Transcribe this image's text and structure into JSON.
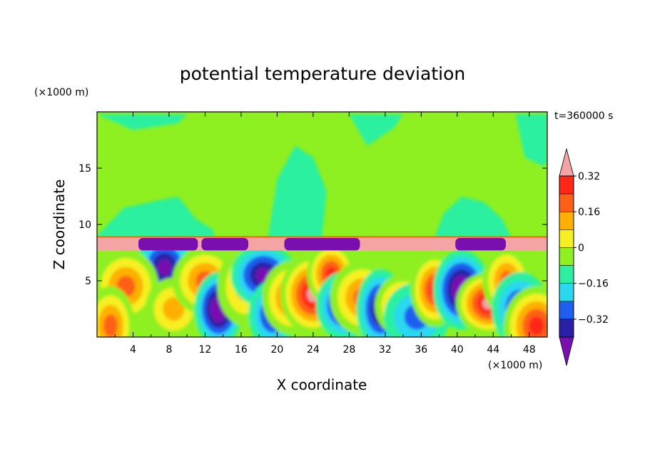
{
  "chart_data": {
    "type": "heatmap",
    "title": "potential temperature deviation",
    "xlabel": "X coordinate",
    "ylabel": "Z coordinate",
    "x_unit": "(×1000 m)",
    "y_unit": "(×1000 m)",
    "time_label": "t=360000 s",
    "xlim": [
      0,
      50
    ],
    "ylim": [
      0,
      20
    ],
    "x_ticks": [
      4,
      8,
      12,
      16,
      20,
      24,
      28,
      32,
      36,
      40,
      44,
      48
    ],
    "y_ticks": [
      5,
      10,
      15
    ],
    "colorbar": {
      "levels": [
        -0.4,
        -0.32,
        -0.24,
        -0.16,
        -0.08,
        0,
        0.08,
        0.16,
        0.24,
        0.32,
        0.4
      ],
      "labels": [
        "0.32",
        "0.16",
        "0",
        "−0.16",
        "−0.32"
      ],
      "label_values": [
        0.32,
        0.16,
        0,
        -0.16,
        -0.32
      ],
      "colors": [
        "#7a0fb0",
        "#2a20a8",
        "#1e5ff0",
        "#2ad8f0",
        "#2cf0a0",
        "#8ef020",
        "#f6f020",
        "#ffb000",
        "#ff6018",
        "#ff2818",
        "#f4a4a4"
      ]
    },
    "layers": {
      "upper_background_value": 0.04,
      "upper_patch_value": -0.04,
      "inversion_band": {
        "z": [
          7.7,
          8.9
        ],
        "value": 0.45
      },
      "inversion_cold_patches": [
        {
          "x": [
            4.6,
            11.2
          ],
          "value": -0.45
        },
        {
          "x": [
            11.6,
            16.8
          ],
          "value": -0.45
        },
        {
          "x": [
            20.8,
            29.2
          ],
          "value": -0.45
        },
        {
          "x": [
            39.8,
            45.4
          ],
          "value": -0.45
        }
      ],
      "boundary_layer_top": 7.7
    },
    "anomalies": [
      {
        "x": 6.0,
        "z": 5.0,
        "value": -0.36
      },
      {
        "x": 7.5,
        "z": 6.2,
        "value": -0.3
      },
      {
        "x": 3.2,
        "z": 4.5,
        "value": 0.2
      },
      {
        "x": 1.5,
        "z": 1.0,
        "value": 0.22
      },
      {
        "x": 8.5,
        "z": 2.5,
        "value": 0.18
      },
      {
        "x": 12.0,
        "z": 5.0,
        "value": 0.2
      },
      {
        "x": 13.5,
        "z": 2.5,
        "value": -0.36
      },
      {
        "x": 16.5,
        "z": 4.5,
        "value": 0.16
      },
      {
        "x": 18.5,
        "z": 5.5,
        "value": -0.32
      },
      {
        "x": 19.5,
        "z": 2.0,
        "value": -0.2
      },
      {
        "x": 21.5,
        "z": 3.5,
        "value": 0.24
      },
      {
        "x": 24.0,
        "z": 3.8,
        "value": 0.4
      },
      {
        "x": 26.0,
        "z": 5.6,
        "value": 0.3
      },
      {
        "x": 27.5,
        "z": 2.8,
        "value": -0.34
      },
      {
        "x": 29.5,
        "z": 3.5,
        "value": 0.2
      },
      {
        "x": 31.5,
        "z": 2.5,
        "value": -0.3
      },
      {
        "x": 34.0,
        "z": 2.8,
        "value": 0.26
      },
      {
        "x": 35.5,
        "z": 1.8,
        "value": -0.16
      },
      {
        "x": 37.5,
        "z": 4.2,
        "value": 0.3
      },
      {
        "x": 40.5,
        "z": 4.2,
        "value": -0.4
      },
      {
        "x": 43.5,
        "z": 3.0,
        "value": 0.4
      },
      {
        "x": 45.5,
        "z": 5.0,
        "value": 0.2
      },
      {
        "x": 47.0,
        "z": 2.5,
        "value": -0.2
      },
      {
        "x": 48.8,
        "z": 1.0,
        "value": 0.3
      }
    ]
  }
}
